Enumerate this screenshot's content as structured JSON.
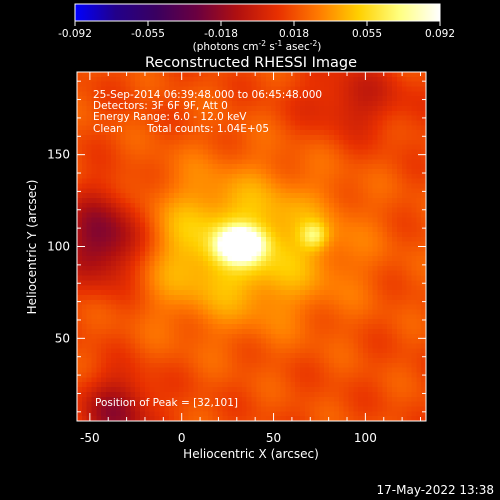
{
  "chart_data": {
    "type": "heatmap",
    "title": "Reconstructed RHESSI Image",
    "xlabel": "Heliocentric X (arcsec)",
    "ylabel": "Heliocentric Y (arcsec)",
    "xlim": [
      -57,
      133
    ],
    "ylim": [
      5,
      195
    ],
    "xticks": [
      -50,
      0,
      50,
      100
    ],
    "yticks": [
      50,
      100,
      150
    ],
    "colorbar": {
      "label": "(photons cm",
      "label_exp1": "-2",
      "label_mid": " s",
      "label_exp2": "-1",
      "label_tail": " asec",
      "label_exp3": "-2",
      "label_close": ")",
      "min": -0.092,
      "max": 0.092,
      "ticks": [
        "-0.092",
        "-0.055",
        "-0.018",
        "0.018",
        "0.055",
        "0.092"
      ],
      "colormap": [
        "#0000ff",
        "#22008a",
        "#3a0060",
        "#6a0040",
        "#b01010",
        "#e83000",
        "#ff7a00",
        "#ffd000",
        "#ffff80",
        "#ffffff"
      ]
    },
    "annotations": {
      "time_range": "25-Sep-2014 06:39:48.000 to 06:45:48.000",
      "detectors": "Detectors: 3F 6F 9F, Att 0",
      "energy": "Energy Range: 6.0 - 12.0 keV",
      "method": "Clean",
      "counts": "Total counts: 1.04E+05",
      "peak": "Position of Peak = [32,101]"
    },
    "peak": {
      "x": 32,
      "y": 101
    },
    "sources": [
      {
        "x": 32,
        "y": 101,
        "sx": 8,
        "sy": 6,
        "amp": 0.092
      },
      {
        "x": 72,
        "y": 106,
        "sx": 5,
        "sy": 5,
        "amp": 0.03
      },
      {
        "x": 30,
        "y": 100,
        "sx": 40,
        "sy": 28,
        "amp": 0.04
      },
      {
        "x": -42,
        "y": 104,
        "sx": 16,
        "sy": 18,
        "amp": -0.05
      },
      {
        "x": -35,
        "y": 10,
        "sx": 14,
        "sy": 14,
        "amp": -0.035
      },
      {
        "x": 95,
        "y": 180,
        "sx": 20,
        "sy": 14,
        "amp": -0.02
      }
    ]
  },
  "footer": {
    "timestamp": "17-May-2022 13:38"
  }
}
